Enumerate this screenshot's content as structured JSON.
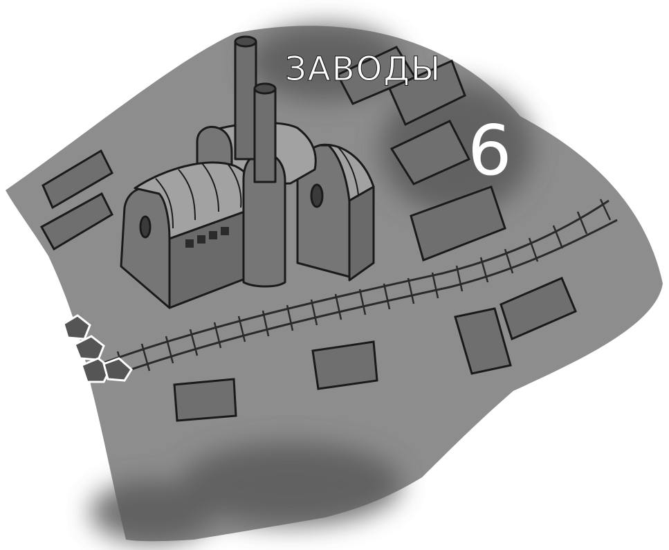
{
  "map": {
    "district_title": "ЗАВОДЫ",
    "district_number": "6",
    "colors": {
      "background": "#ffffff",
      "ground": "#8d8d8d",
      "smoke": "#5f5f5f",
      "building_fill": "#767676",
      "outline": "#1a1a1a",
      "roof": "#a2a2a2",
      "rail": "#2a2a2a",
      "label": "#ffffff"
    },
    "features": [
      "factory-building",
      "smokestacks",
      "railway",
      "blocks",
      "rocks"
    ]
  }
}
